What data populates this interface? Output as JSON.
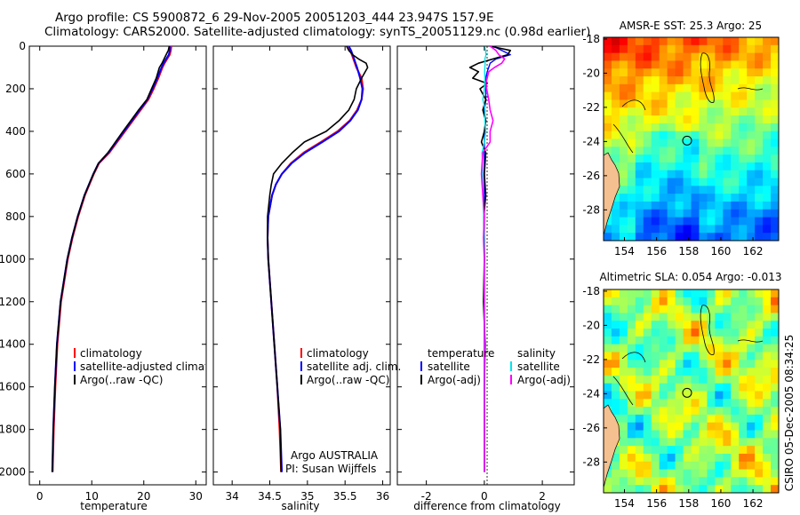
{
  "figure": {
    "title_line1": "Argo profile: CS 5900872_6 29-Nov-2005 20051203_444 23.947S 157.9E",
    "title_line2": "Climatology: CARS2000. Satellite-adjusted climatology: synTS_20051129.nc (0.98d earlier)",
    "credit": "CSIRO 05-Dec-2005 08:34:25",
    "attribution": [
      "Argo AUSTRALIA",
      "PI: Susan Wijffels"
    ]
  },
  "colors": {
    "climatology": "#ff0000",
    "satellite": "#0000ff",
    "argo": "#000000",
    "sal_satellite": "#00e5ee",
    "sal_argo": "#ff00ff"
  },
  "chart_data": [
    {
      "type": "line",
      "panel": "temperature",
      "xlabel": "temperature",
      "xlim": [
        -2,
        32
      ],
      "ylim": [
        2060,
        0
      ],
      "xticks": [
        0,
        10,
        20,
        30
      ],
      "yticks": [
        0,
        200,
        400,
        600,
        800,
        1000,
        1200,
        1400,
        1600,
        1800,
        2000
      ],
      "legend": [
        "climatology",
        "satellite-adjusted climatology",
        "Argo(..raw -QC)"
      ],
      "depth": [
        0,
        20,
        40,
        60,
        80,
        100,
        150,
        200,
        250,
        300,
        400,
        500,
        550,
        600,
        700,
        800,
        900,
        1000,
        1200,
        1400,
        1600,
        1800,
        2000
      ],
      "series": [
        {
          "name": "climatology",
          "values": [
            25.3,
            25.2,
            25.0,
            24.5,
            24.0,
            23.6,
            22.8,
            21.9,
            20.9,
            19.4,
            16.4,
            13.4,
            11.4,
            10.4,
            8.7,
            7.4,
            6.3,
            5.4,
            4.1,
            3.4,
            3.0,
            2.7,
            2.5
          ]
        },
        {
          "name": "satellite-adjusted climatology",
          "values": [
            25.0,
            25.0,
            24.8,
            24.3,
            23.8,
            23.4,
            22.6,
            21.7,
            20.7,
            19.2,
            16.2,
            13.2,
            11.3,
            10.3,
            8.6,
            7.3,
            6.2,
            5.3,
            4.0,
            3.3,
            2.9,
            2.6,
            2.4
          ]
        },
        {
          "name": "Argo(..raw -QC)",
          "values": [
            24.9,
            24.7,
            24.3,
            23.9,
            23.5,
            23.0,
            22.4,
            21.5,
            20.6,
            19.0,
            16.0,
            13.1,
            11.3,
            10.3,
            8.6,
            7.3,
            6.2,
            5.3,
            4.0,
            3.3,
            2.9,
            2.6,
            2.4
          ]
        }
      ]
    },
    {
      "type": "line",
      "panel": "salinity",
      "xlabel": "salinity",
      "xlim": [
        33.75,
        36.1
      ],
      "ylim": [
        2060,
        0
      ],
      "xticks": [
        34,
        34.5,
        35,
        35.5,
        36
      ],
      "legend": [
        "climatology",
        "satellite adj. clim.",
        "Argo(..raw -QC)"
      ],
      "depth": [
        0,
        20,
        40,
        60,
        80,
        100,
        150,
        200,
        250,
        300,
        350,
        400,
        450,
        500,
        550,
        600,
        650,
        700,
        800,
        900,
        1000,
        1200,
        1400,
        1600,
        1800,
        2000
      ],
      "series": [
        {
          "name": "climatology",
          "values": [
            35.55,
            35.57,
            35.59,
            35.61,
            35.63,
            35.65,
            35.72,
            35.74,
            35.72,
            35.66,
            35.56,
            35.4,
            35.18,
            34.95,
            34.78,
            34.66,
            34.58,
            34.53,
            34.48,
            34.47,
            34.48,
            34.52,
            34.56,
            34.6,
            34.63,
            34.65
          ]
        },
        {
          "name": "satellite adj. clim.",
          "values": [
            35.55,
            35.58,
            35.6,
            35.62,
            35.64,
            35.66,
            35.7,
            35.73,
            35.72,
            35.67,
            35.57,
            35.42,
            35.2,
            34.97,
            34.79,
            34.66,
            34.58,
            34.53,
            34.48,
            34.47,
            34.48,
            34.52,
            34.56,
            34.6,
            34.64,
            34.66
          ]
        },
        {
          "name": "Argo(..raw -QC)",
          "values": [
            35.52,
            35.55,
            35.6,
            35.68,
            35.78,
            35.8,
            35.72,
            35.65,
            35.62,
            35.55,
            35.42,
            35.25,
            34.96,
            34.8,
            34.66,
            34.55,
            34.52,
            34.5,
            34.47,
            34.47,
            34.48,
            34.52,
            34.56,
            34.6,
            34.64,
            34.65
          ]
        }
      ]
    },
    {
      "type": "line",
      "panel": "difference",
      "xlabel": "difference from climatology",
      "xlim": [
        -3,
        3.1
      ],
      "ylim": [
        2060,
        0
      ],
      "xticks": [
        -2,
        0,
        2
      ],
      "legend_temperature": [
        "temperature",
        "satellite",
        "Argo(-adj)"
      ],
      "legend_salinity": [
        "salinity",
        "satellite",
        "Argo(-adj)"
      ],
      "depth": [
        0,
        20,
        40,
        60,
        80,
        100,
        120,
        150,
        175,
        200,
        250,
        300,
        350,
        400,
        450,
        500,
        600,
        700,
        800,
        900,
        1000,
        1200,
        1400,
        1600,
        1800,
        2000
      ],
      "series": [
        {
          "name": "temperature satellite",
          "values": [
            0.3,
            0.6,
            0.9,
            0.4,
            0.2,
            0.15,
            0.1,
            0.05,
            0.05,
            0.05,
            0.05,
            0,
            0.05,
            0,
            0,
            0,
            0,
            0,
            0,
            0,
            0,
            0,
            0,
            0,
            0,
            0
          ]
        },
        {
          "name": "temperature Argo(-adj)",
          "values": [
            0.2,
            0.9,
            0.8,
            0.3,
            -0.2,
            -0.5,
            -0.2,
            -0.4,
            0.1,
            -0.15,
            0.05,
            -0.05,
            0.05,
            0,
            -0.1,
            0.05,
            0,
            0.05,
            -0.02,
            0,
            0,
            -0.03,
            0.03,
            0,
            0,
            0
          ]
        },
        {
          "name": "salinity satellite",
          "values": [
            0,
            0.04,
            0.06,
            0.02,
            0.03,
            0.02,
            0.01,
            0.02,
            0.01,
            0,
            -0.05,
            0.03,
            0.02,
            0.05,
            0,
            -0.08,
            -0.05,
            -0.05,
            -0.02,
            0,
            0,
            0,
            0.01,
            0.01,
            0,
            0
          ]
        },
        {
          "name": "salinity Argo(-adj)",
          "values": [
            0.2,
            0.4,
            0.5,
            0.7,
            0.6,
            0.35,
            0.15,
            0.1,
            0.05,
            0.08,
            0.15,
            0.2,
            0.3,
            0.2,
            0.2,
            -0.05,
            -0.1,
            -0.05,
            0,
            -0.03,
            0,
            0,
            0,
            0,
            0,
            0
          ]
        }
      ]
    },
    {
      "type": "heatmap",
      "panel": "sst_map",
      "title": "AMSR-E SST: 25.3  Argo: 25",
      "xticks": [
        154,
        156,
        158,
        160,
        162
      ],
      "yticks": [
        -18,
        -20,
        -22,
        -24,
        -26,
        -28
      ],
      "profile_location": [
        157.9,
        -23.947
      ]
    },
    {
      "type": "heatmap",
      "panel": "sla_map",
      "title": "Altimetric SLA: 0.054  Argo: -0.013",
      "xticks": [
        154,
        156,
        158,
        160,
        162
      ],
      "yticks": [
        -18,
        -20,
        -22,
        -24,
        -26,
        -28
      ],
      "profile_location": [
        157.9,
        -23.947
      ]
    }
  ]
}
